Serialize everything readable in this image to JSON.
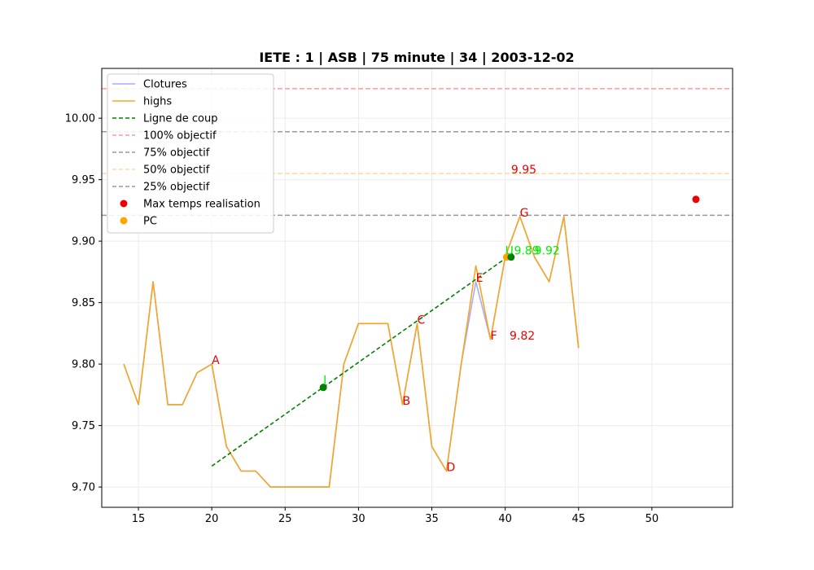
{
  "chart_data": {
    "type": "line",
    "title": "IETE : 1 | ASB | 75 minute | 34 | 2003-12-02",
    "xlabel": "",
    "ylabel": "",
    "xlim": [
      12.5,
      55.5
    ],
    "ylim": [
      9.6835,
      10.0405
    ],
    "xticks": [
      15,
      20,
      25,
      30,
      35,
      40,
      45,
      50
    ],
    "yticks": [
      9.7,
      9.75,
      9.8,
      9.85,
      9.9,
      9.95,
      10.0
    ],
    "grid": true,
    "legend_position": "top-left",
    "series": [
      {
        "name": "Clotures",
        "color": "#aaaaff",
        "x": [
          14,
          15,
          16,
          17,
          18,
          19,
          20,
          21,
          22,
          23,
          24,
          25,
          26,
          27,
          28,
          29,
          30,
          31,
          32,
          33,
          34,
          35,
          36,
          37,
          38,
          39,
          40,
          41,
          42,
          43,
          44,
          45
        ],
        "values": [
          9.8,
          9.767,
          9.867,
          9.767,
          9.767,
          9.793,
          9.8,
          9.733,
          9.713,
          9.713,
          9.7,
          9.7,
          9.7,
          9.7,
          9.7,
          9.8,
          9.833,
          9.833,
          9.833,
          9.767,
          9.833,
          9.733,
          9.713,
          9.8,
          9.867,
          9.82,
          9.887,
          9.92,
          9.887,
          9.867,
          9.92,
          9.813
        ]
      },
      {
        "name": "highs",
        "color": "#f5a623",
        "x": [
          14,
          15,
          16,
          17,
          18,
          19,
          20,
          21,
          22,
          23,
          24,
          25,
          26,
          27,
          28,
          29,
          30,
          31,
          32,
          33,
          34,
          35,
          36,
          37,
          38,
          39,
          40,
          41,
          42,
          43,
          44,
          45
        ],
        "values": [
          9.8,
          9.767,
          9.867,
          9.767,
          9.767,
          9.793,
          9.8,
          9.733,
          9.713,
          9.713,
          9.7,
          9.7,
          9.7,
          9.7,
          9.7,
          9.8,
          9.833,
          9.833,
          9.833,
          9.767,
          9.833,
          9.733,
          9.713,
          9.8,
          9.88,
          9.82,
          9.887,
          9.92,
          9.887,
          9.867,
          9.92,
          9.813
        ]
      },
      {
        "name": "Ligne de coup",
        "color": "#008000",
        "dashed": true,
        "x": [
          20,
          40.5
        ],
        "values": [
          9.717,
          9.89
        ]
      }
    ],
    "hlines": [
      {
        "name": "100% objectif",
        "value": 10.024,
        "color": "#ff9999"
      },
      {
        "name": "75% objectif",
        "value": 9.989,
        "color": "#999999"
      },
      {
        "name": "50% objectif",
        "value": 9.955,
        "color": "#ffd9a0"
      },
      {
        "name": "25% objectif",
        "value": 9.921,
        "color": "#999999"
      }
    ],
    "scatter": [
      {
        "name": "Max temps realisation",
        "color": "#ee0000",
        "x": [
          53
        ],
        "values": [
          9.934
        ]
      },
      {
        "name": "PC",
        "color": "#ffa500",
        "x": [
          40.1
        ],
        "values": [
          9.887
        ]
      }
    ],
    "green_points": [
      {
        "x": 27.6,
        "y": 9.781
      },
      {
        "x": 40.4,
        "y": 9.887
      }
    ],
    "annotations": [
      {
        "text": "A",
        "x": 20,
        "y": 9.8,
        "color": "#ee0000"
      },
      {
        "text": "B",
        "x": 33,
        "y": 9.767,
        "color": "#ee0000"
      },
      {
        "text": "C",
        "x": 34,
        "y": 9.833,
        "color": "#ee0000"
      },
      {
        "text": "D",
        "x": 36,
        "y": 9.713,
        "color": "#ee0000"
      },
      {
        "text": "E",
        "x": 38,
        "y": 9.867,
        "color": "#ee0000"
      },
      {
        "text": "F",
        "x": 39,
        "y": 9.82,
        "color": "#ee0000"
      },
      {
        "text": "G",
        "x": 41,
        "y": 9.92,
        "color": "#ee0000"
      },
      {
        "text": "9.95",
        "x": 40.4,
        "y": 9.955,
        "color": "#ee0000"
      },
      {
        "text": "9.82",
        "x": 40.3,
        "y": 9.82,
        "color": "#ee0000"
      },
      {
        "text": "I",
        "x": 27.6,
        "y": 9.784,
        "color": "#00ee00"
      },
      {
        "text": "U",
        "x": 40.0,
        "y": 9.889,
        "color": "#00ee00"
      },
      {
        "text": "9.89",
        "x": 40.6,
        "y": 9.889,
        "color": "#00ee00"
      },
      {
        "text": "9.92",
        "x": 42.0,
        "y": 9.889,
        "color": "#00ee00"
      }
    ]
  }
}
